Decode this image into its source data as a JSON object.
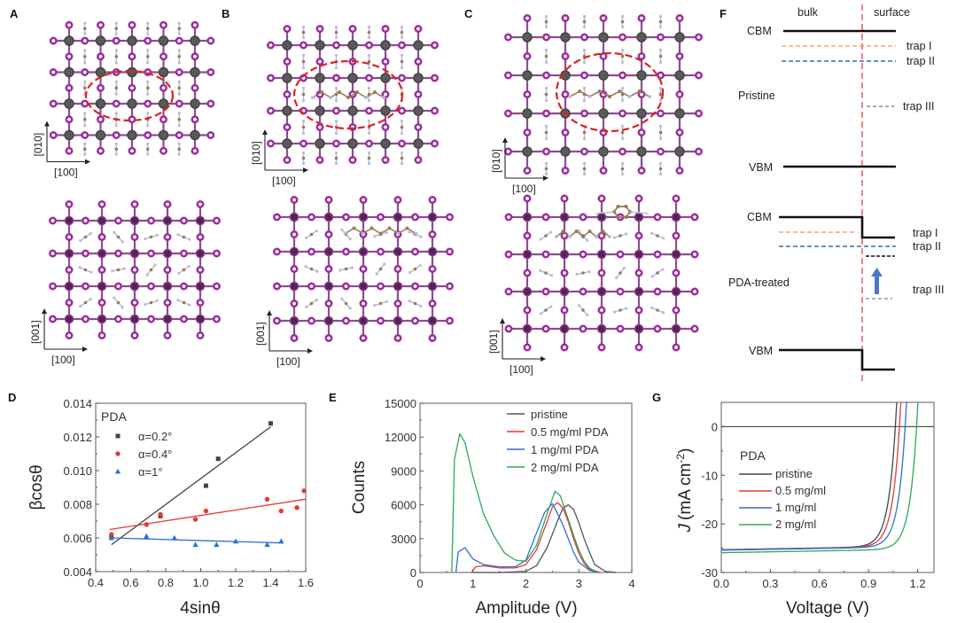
{
  "panels": {
    "A": "A",
    "B": "B",
    "C": "C",
    "D": "D",
    "E": "E",
    "F": "F",
    "G": "G"
  },
  "crystal": {
    "top_axis_x": "[100]",
    "top_axis_y": "[010]",
    "bottom_axis_x": "[100]",
    "bottom_axis_y": "[001]",
    "colors": {
      "pb": "#5a5a5a",
      "iodide": "#9b2f9b",
      "carbon": "#9a7a55",
      "nitrogen": "#b8bcd8",
      "highlight": "#e02020"
    },
    "panels": [
      {
        "id": "A",
        "variant": "pristine"
      },
      {
        "id": "B",
        "variant": "PDA linear chain"
      },
      {
        "id": "C",
        "variant": "PDA ring"
      }
    ]
  },
  "band_diagram": {
    "bulk_label": "bulk",
    "surface_label": "surface",
    "pristine": {
      "title": "Pristine",
      "cbm": "CBM",
      "vbm": "VBM",
      "traps": [
        "trap I",
        "trap II",
        "trap III"
      ]
    },
    "treated": {
      "title": "PDA-treated",
      "cbm": "CBM",
      "vbm": "VBM",
      "traps": [
        "trap I",
        "trap II",
        "trap III"
      ]
    },
    "colors": {
      "trap1": "#f2a57a",
      "trap2": "#3a66b8",
      "trap3": "#999999",
      "interface": "#e8404a",
      "arrow": "#4a78c8"
    }
  },
  "chart_data": [
    {
      "id": "D",
      "type": "scatter",
      "title": "",
      "xlabel": "4sinθ",
      "ylabel": "βcosθ",
      "xlim": [
        0.4,
        1.6
      ],
      "ylim": [
        0.004,
        0.014
      ],
      "xticks": [
        "0.4",
        "0.6",
        "0.8",
        "1.0",
        "1.2",
        "1.4",
        "1.6"
      ],
      "yticks": [
        "0.004",
        "0.006",
        "0.008",
        "0.010",
        "0.012",
        "0.014"
      ],
      "legend_title": "PDA",
      "legend_position": "top-left",
      "series": [
        {
          "name": "α=0.2°",
          "color": "#444444",
          "marker": "square",
          "x": [
            0.49,
            0.77,
            1.03,
            1.1,
            1.4
          ],
          "y": [
            0.0061,
            0.0073,
            0.0091,
            0.0107,
            0.0128
          ],
          "fit": [
            [
              0.49,
              0.0056
            ],
            [
              1.4,
              0.0126
            ]
          ]
        },
        {
          "name": "α=0.4°",
          "color": "#e53935",
          "marker": "circle",
          "x": [
            0.49,
            0.69,
            0.77,
            0.97,
            1.03,
            1.38,
            1.46,
            1.55,
            1.59
          ],
          "y": [
            0.0062,
            0.0068,
            0.0074,
            0.0071,
            0.0076,
            0.0083,
            0.0076,
            0.0078,
            0.0088
          ],
          "fit": [
            [
              0.48,
              0.0065
            ],
            [
              1.6,
              0.0083
            ]
          ]
        },
        {
          "name": "α=1°",
          "color": "#2e6fd6",
          "marker": "triangle",
          "x": [
            0.49,
            0.69,
            0.85,
            0.97,
            1.09,
            1.2,
            1.38,
            1.46
          ],
          "y": [
            0.006,
            0.0061,
            0.006,
            0.0056,
            0.0056,
            0.0058,
            0.0056,
            0.0058
          ],
          "fit": [
            [
              0.49,
              0.006
            ],
            [
              1.47,
              0.0057
            ]
          ]
        }
      ]
    },
    {
      "id": "E",
      "type": "line",
      "title": "",
      "xlabel": "Amplitude (V)",
      "ylabel": "Counts",
      "xlim": [
        0,
        4
      ],
      "ylim": [
        0,
        15000
      ],
      "xticks": [
        "0",
        "1",
        "2",
        "3",
        "4"
      ],
      "yticks": [
        "0",
        "3000",
        "6000",
        "9000",
        "12000",
        "15000"
      ],
      "legend_position": "top-right",
      "series": [
        {
          "name": "pristine",
          "color": "#555555",
          "x": [
            1.0,
            1.5,
            2.0,
            2.2,
            2.4,
            2.6,
            2.7,
            2.8,
            2.9,
            3.0,
            3.1,
            3.2,
            3.3,
            3.5,
            3.7
          ],
          "y": [
            0,
            0,
            100,
            600,
            2200,
            4600,
            5700,
            6000,
            5600,
            4400,
            3000,
            1800,
            700,
            100,
            0
          ]
        },
        {
          "name": "0.5 mg/ml PDA",
          "color": "#e53935",
          "x": [
            0.97,
            1.05,
            1.2,
            1.5,
            1.8,
            2.0,
            2.2,
            2.4,
            2.5,
            2.6,
            2.7,
            2.8,
            2.9,
            3.0,
            3.1,
            3.2,
            3.4
          ],
          "y": [
            0,
            500,
            600,
            400,
            400,
            700,
            2000,
            4500,
            5800,
            6200,
            5700,
            4500,
            3000,
            1700,
            800,
            300,
            0
          ]
        },
        {
          "name": "1 mg/ml PDA",
          "color": "#2e6fd6",
          "x": [
            0.68,
            0.72,
            0.85,
            1.0,
            1.2,
            1.5,
            1.8,
            2.0,
            2.2,
            2.35,
            2.5,
            2.6,
            2.7,
            2.8,
            2.9,
            3.0,
            3.2,
            3.35
          ],
          "y": [
            0,
            1800,
            2200,
            1200,
            700,
            500,
            500,
            1100,
            3500,
            5300,
            6100,
            5200,
            4200,
            3000,
            1800,
            900,
            200,
            0
          ]
        },
        {
          "name": "2 mg/ml PDA",
          "color": "#2ea85a",
          "x": [
            0.6,
            0.65,
            0.75,
            0.85,
            1.0,
            1.2,
            1.4,
            1.6,
            1.8,
            2.0,
            2.2,
            2.4,
            2.55,
            2.65,
            2.75,
            2.9,
            3.0,
            3.1,
            3.2,
            3.35
          ],
          "y": [
            0,
            10000,
            12300,
            11500,
            8500,
            5200,
            3200,
            1700,
            1100,
            1000,
            2400,
            5200,
            7200,
            6800,
            5400,
            3300,
            2000,
            1000,
            400,
            0
          ]
        }
      ]
    },
    {
      "id": "G",
      "type": "line",
      "title": "",
      "xlabel": "Voltage (V)",
      "ylabel": "J (mA cm-2)",
      "ylabel_main": "J",
      "ylabel_unit": "(mA cm",
      "ylabel_sup": "-2",
      "ylabel_close": ")",
      "xlim": [
        0.0,
        1.3
      ],
      "ylim": [
        -30,
        5
      ],
      "xticks": [
        "0.0",
        "0.3",
        "0.6",
        "0.9",
        "1.2"
      ],
      "yticks": [
        "-30",
        "-20",
        "-10",
        "0"
      ],
      "legend_title": "PDA",
      "legend_position": "center-left",
      "series": [
        {
          "name": "pristine",
          "color": "#444444",
          "jsc": -24.9,
          "voc": 1.065,
          "knee": 0.88
        },
        {
          "name": "0.5 mg/ml",
          "color": "#e53935",
          "jsc": -24.9,
          "voc": 1.09,
          "knee": 0.91
        },
        {
          "name": "1 mg/ml",
          "color": "#2e6fd6",
          "jsc": -25.0,
          "voc": 1.125,
          "knee": 0.94
        },
        {
          "name": "2 mg/ml",
          "color": "#2ea85a",
          "jsc": -25.1,
          "voc": 1.195,
          "knee": 1.04
        }
      ]
    }
  ]
}
